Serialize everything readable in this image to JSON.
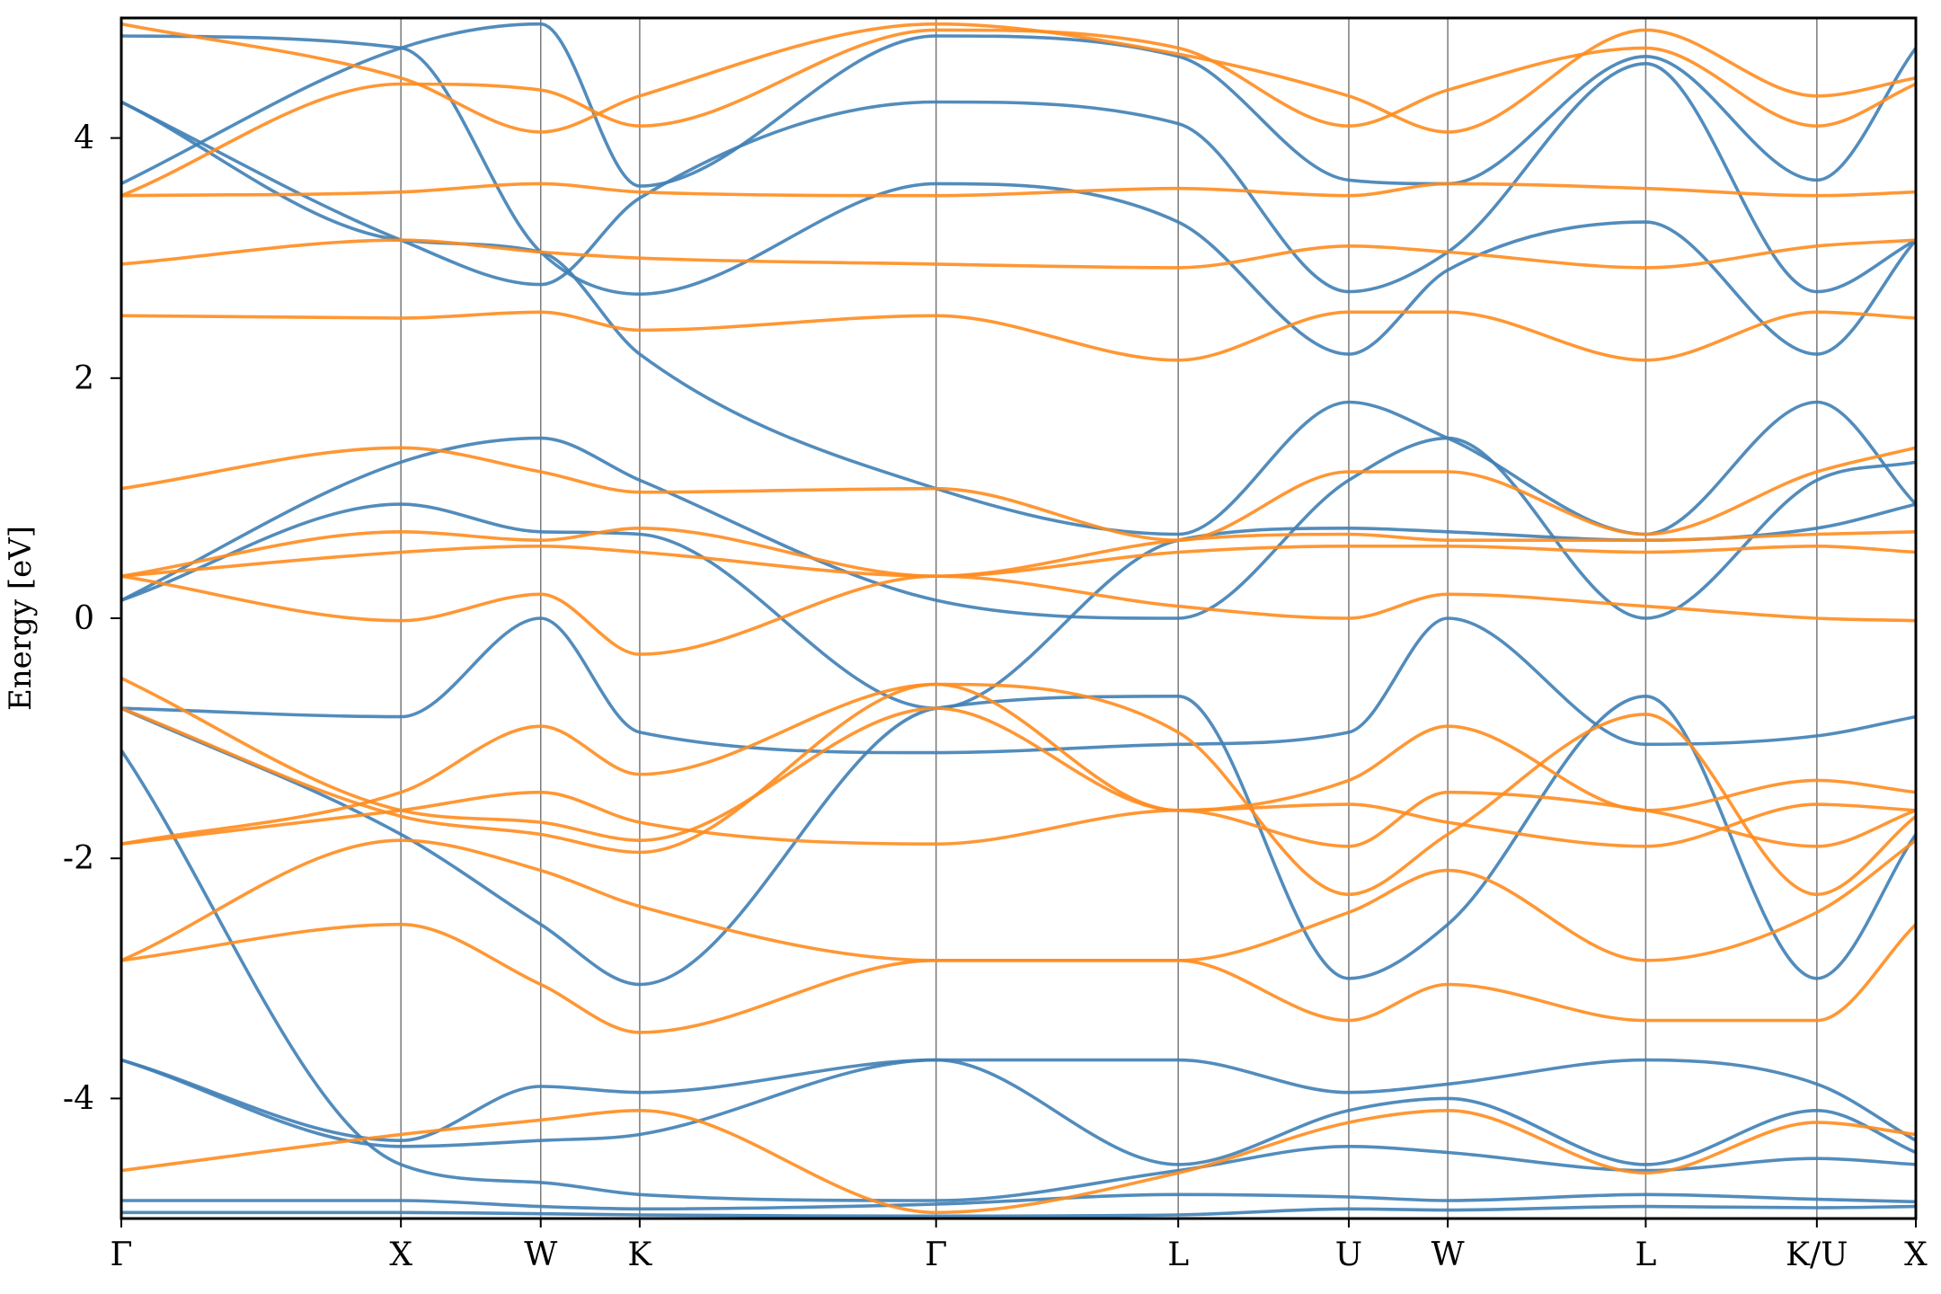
{
  "chart_data": {
    "type": "line",
    "title": "",
    "xlabel": "",
    "ylabel": "Energy [eV]",
    "ylim": [
      -5,
      5
    ],
    "yticks": [
      4,
      2,
      0,
      -2,
      -4
    ],
    "ytick_labels": [
      "4",
      "2",
      "0",
      "-2",
      "-4"
    ],
    "grid": false,
    "legend": "none",
    "kpath": {
      "labels": [
        "Γ",
        "X",
        "W",
        "K",
        "Γ",
        "L",
        "U",
        "W",
        "L",
        "K/U",
        "X"
      ],
      "positions": [
        0.0,
        1.0,
        1.5,
        1.854,
        2.914,
        3.78,
        4.39,
        4.744,
        5.452,
        6.064,
        6.418
      ]
    },
    "colors": {
      "blue": "#3f7fb5",
      "orange": "#ff8c1e"
    },
    "bands_blue": [
      [
        -4.95,
        -4.95,
        -4.96,
        -4.97,
        -4.98,
        -4.97,
        -4.92,
        -4.93,
        -4.9,
        -4.91,
        -4.9
      ],
      [
        -4.85,
        -4.85,
        -4.9,
        -4.92,
        -4.88,
        -4.8,
        -4.82,
        -4.85,
        -4.8,
        -4.84,
        -4.86
      ],
      [
        -3.68,
        -4.35,
        -3.9,
        -3.95,
        -3.68,
        -3.68,
        -3.95,
        -3.88,
        -3.68,
        -3.88,
        -4.35
      ],
      [
        -3.68,
        -4.4,
        -4.35,
        -4.3,
        -3.68,
        -4.55,
        -4.1,
        -4.0,
        -4.55,
        -4.1,
        -4.45
      ],
      [
        -1.1,
        -4.55,
        -4.7,
        -4.8,
        -4.85,
        -4.6,
        -4.4,
        -4.45,
        -4.6,
        -4.5,
        -4.55
      ],
      [
        -0.75,
        -0.82,
        0.0,
        -0.95,
        -1.12,
        -1.05,
        -0.95,
        0.0,
        -1.05,
        -0.98,
        -0.82
      ],
      [
        -0.75,
        -1.8,
        -2.55,
        -3.05,
        -0.75,
        -0.65,
        -3.0,
        -2.55,
        -0.65,
        -3.0,
        -1.8
      ],
      [
        0.15,
        1.3,
        1.5,
        1.15,
        0.15,
        0.0,
        1.15,
        1.5,
        0.0,
        1.15,
        1.3
      ],
      [
        0.15,
        0.95,
        0.72,
        0.7,
        -0.75,
        0.65,
        0.75,
        0.72,
        0.65,
        0.75,
        0.95
      ],
      [
        4.3,
        3.15,
        3.05,
        2.2,
        1.08,
        0.7,
        1.8,
        1.5,
        0.7,
        1.8,
        0.95
      ],
      [
        4.85,
        4.75,
        3.05,
        2.7,
        3.62,
        3.3,
        2.2,
        2.9,
        3.3,
        2.2,
        3.15
      ],
      [
        4.3,
        3.15,
        2.78,
        3.5,
        4.3,
        4.12,
        2.72,
        3.05,
        4.62,
        2.72,
        3.15
      ],
      [
        3.62,
        4.75,
        4.95,
        3.6,
        4.85,
        4.68,
        3.65,
        3.62,
        4.68,
        3.65,
        4.75
      ]
    ],
    "bands_orange": [
      [
        -4.6,
        -4.3,
        -4.18,
        -4.1,
        -4.95,
        -4.62,
        -4.2,
        -4.1,
        -4.62,
        -4.2,
        -4.3
      ],
      [
        -2.85,
        -2.55,
        -3.05,
        -3.45,
        -2.85,
        -2.85,
        -3.35,
        -3.05,
        -3.35,
        -3.35,
        -2.55
      ],
      [
        -2.85,
        -1.85,
        -2.1,
        -2.4,
        -2.85,
        -2.85,
        -2.45,
        -2.1,
        -2.85,
        -2.45,
        -1.85
      ],
      [
        -1.88,
        -1.45,
        -0.9,
        -1.3,
        -0.55,
        -1.6,
        -1.35,
        -0.9,
        -1.6,
        -1.35,
        -1.45
      ],
      [
        -1.88,
        -1.6,
        -1.45,
        -1.7,
        -1.88,
        -1.6,
        -1.9,
        -1.45,
        -1.6,
        -1.9,
        -1.6
      ],
      [
        -0.5,
        -1.6,
        -1.7,
        -1.85,
        -0.75,
        -1.6,
        -1.55,
        -1.7,
        -1.9,
        -1.55,
        -1.6
      ],
      [
        -0.75,
        -1.65,
        -1.8,
        -1.95,
        -0.55,
        -0.95,
        -2.3,
        -1.8,
        -0.8,
        -2.3,
        -1.65
      ],
      [
        0.35,
        -0.02,
        0.2,
        -0.3,
        0.35,
        0.1,
        0.0,
        0.2,
        0.1,
        0.0,
        -0.02
      ],
      [
        0.35,
        0.55,
        0.6,
        0.55,
        0.35,
        0.55,
        0.6,
        0.6,
        0.55,
        0.6,
        0.55
      ],
      [
        0.35,
        0.72,
        0.65,
        0.75,
        0.35,
        0.65,
        0.7,
        0.65,
        0.65,
        0.7,
        0.72
      ],
      [
        1.08,
        1.42,
        1.22,
        1.05,
        1.08,
        0.65,
        1.22,
        1.22,
        0.7,
        1.22,
        1.42
      ],
      [
        2.52,
        2.5,
        2.55,
        2.4,
        2.52,
        2.15,
        2.55,
        2.55,
        2.15,
        2.55,
        2.5
      ],
      [
        2.95,
        3.15,
        3.05,
        3.0,
        2.95,
        2.92,
        3.1,
        3.05,
        2.92,
        3.1,
        3.15
      ],
      [
        3.52,
        3.55,
        3.62,
        3.55,
        3.52,
        3.58,
        3.52,
        3.62,
        3.58,
        3.52,
        3.55
      ],
      [
        3.52,
        4.45,
        4.4,
        4.1,
        4.9,
        4.75,
        4.1,
        4.4,
        4.75,
        4.1,
        4.45
      ],
      [
        4.95,
        4.5,
        4.05,
        4.35,
        4.95,
        4.7,
        4.35,
        4.05,
        4.9,
        4.35,
        4.5
      ]
    ]
  }
}
